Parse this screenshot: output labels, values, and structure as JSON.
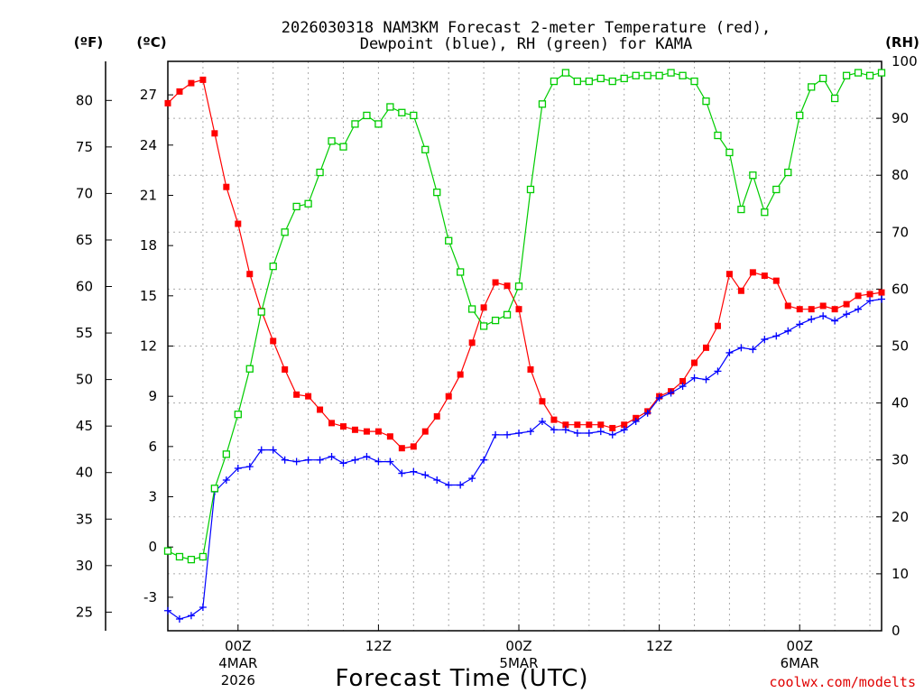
{
  "chart_data": {
    "type": "line",
    "title": "2026030318 NAM3KM Forecast 2-meter Temperature (red),",
    "subtitle": "Dewpoint (blue), RH (green) for KAMA",
    "xlabel": "Forecast Time (UTC)",
    "y_left_unit_f": "(ºF)",
    "y_left_unit_c": "(ºC)",
    "y_right_unit": "(RH)",
    "credit": "coolwx.com/modelts",
    "x_range_hours": [
      0,
      61
    ],
    "y_c_range": [
      -5,
      29
    ],
    "y_rh_range": [
      0,
      100
    ],
    "y_f_ticks": [
      "25",
      "30",
      "35",
      "40",
      "45",
      "50",
      "55",
      "60",
      "65",
      "70",
      "75",
      "80"
    ],
    "y_c_ticks": [
      "-3",
      "0",
      "3",
      "6",
      "9",
      "12",
      "15",
      "18",
      "21",
      "24",
      "27"
    ],
    "y_rh_ticks": [
      "0",
      "10",
      "20",
      "30",
      "40",
      "50",
      "60",
      "70",
      "80",
      "90",
      "100"
    ],
    "x_ticks": [
      {
        "hour": 6,
        "label": "00Z",
        "sub1": "4MAR",
        "sub2": "2026"
      },
      {
        "hour": 18,
        "label": "12Z",
        "sub1": "",
        "sub2": ""
      },
      {
        "hour": 30,
        "label": "00Z",
        "sub1": "5MAR",
        "sub2": ""
      },
      {
        "hour": 42,
        "label": "12Z",
        "sub1": "",
        "sub2": ""
      },
      {
        "hour": 54,
        "label": "00Z",
        "sub1": "6MAR",
        "sub2": ""
      }
    ],
    "grid": true,
    "series": [
      {
        "name": "Temperature",
        "color": "#ff0000",
        "marker": "filled-square",
        "axis": "celsius",
        "hours": [
          0,
          1,
          2,
          3,
          4,
          5,
          6,
          7,
          8,
          9,
          10,
          11,
          12,
          13,
          14,
          15,
          16,
          17,
          18,
          19,
          20,
          21,
          22,
          23,
          24,
          25,
          26,
          27,
          28,
          29,
          30,
          31,
          32,
          33,
          34,
          35,
          36,
          37,
          38,
          39,
          40,
          41,
          42,
          43,
          44,
          45,
          46,
          47,
          48,
          49,
          50,
          51,
          52,
          53,
          54,
          55,
          56,
          57,
          58,
          59,
          60,
          61
        ],
        "values": [
          26.5,
          27.2,
          27.7,
          27.9,
          24.7,
          21.5,
          19.3,
          16.3,
          14.1,
          12.3,
          10.6,
          9.1,
          9.0,
          8.2,
          7.4,
          7.2,
          7.0,
          6.9,
          6.9,
          6.6,
          5.9,
          6.0,
          6.9,
          7.8,
          9.0,
          10.3,
          12.2,
          14.3,
          15.8,
          15.6,
          14.2,
          10.6,
          8.7,
          7.6,
          7.3,
          7.3,
          7.3,
          7.3,
          7.1,
          7.3,
          7.7,
          8.1,
          9.0,
          9.3,
          9.9,
          11.0,
          11.9,
          13.2,
          16.3,
          15.3,
          16.4,
          16.2,
          15.9,
          14.4,
          14.2,
          14.2,
          14.4,
          14.2,
          14.5,
          15.0,
          15.1,
          15.2
        ]
      },
      {
        "name": "Dewpoint",
        "color": "#0000ff",
        "marker": "plus",
        "axis": "celsius",
        "hours": [
          0,
          1,
          2,
          3,
          4,
          5,
          6,
          7,
          8,
          9,
          10,
          11,
          12,
          13,
          14,
          15,
          16,
          17,
          18,
          19,
          20,
          21,
          22,
          23,
          24,
          25,
          26,
          27,
          28,
          29,
          30,
          31,
          32,
          33,
          34,
          35,
          36,
          37,
          38,
          39,
          40,
          41,
          42,
          43,
          44,
          45,
          46,
          47,
          48,
          49,
          50,
          51,
          52,
          53,
          54,
          55,
          56,
          57,
          58,
          59,
          60,
          61
        ],
        "values": [
          -3.8,
          -4.3,
          -4.1,
          -3.6,
          3.3,
          4.0,
          4.7,
          4.8,
          5.8,
          5.8,
          5.2,
          5.1,
          5.2,
          5.2,
          5.4,
          5.0,
          5.2,
          5.4,
          5.1,
          5.1,
          4.4,
          4.5,
          4.3,
          4.0,
          3.7,
          3.7,
          4.1,
          5.2,
          6.7,
          6.7,
          6.8,
          6.9,
          7.5,
          7.0,
          7.0,
          6.8,
          6.8,
          6.9,
          6.7,
          7.0,
          7.5,
          8.0,
          8.9,
          9.2,
          9.6,
          10.1,
          10.0,
          10.5,
          11.6,
          11.9,
          11.8,
          12.4,
          12.6,
          12.9,
          13.3,
          13.6,
          13.8,
          13.5,
          13.9,
          14.2,
          14.7,
          14.8
        ]
      },
      {
        "name": "RH",
        "color": "#00cc00",
        "marker": "open-square",
        "axis": "rh",
        "hours": [
          0,
          1,
          2,
          3,
          4,
          5,
          6,
          7,
          8,
          9,
          10,
          11,
          12,
          13,
          14,
          15,
          16,
          17,
          18,
          19,
          20,
          21,
          22,
          23,
          24,
          25,
          26,
          27,
          28,
          29,
          30,
          31,
          32,
          33,
          34,
          35,
          36,
          37,
          38,
          39,
          40,
          41,
          42,
          43,
          44,
          45,
          46,
          47,
          48,
          49,
          50,
          51,
          52,
          53,
          54,
          55,
          56,
          57,
          58,
          59,
          60,
          61
        ],
        "values": [
          14,
          13,
          12.5,
          13,
          25,
          31,
          38,
          46,
          56,
          64,
          70,
          74.5,
          75,
          80.5,
          86,
          85,
          89,
          90.5,
          89,
          92,
          91,
          90.5,
          84.5,
          77,
          68.5,
          63,
          56.5,
          53.5,
          54.5,
          55.5,
          60.5,
          77.5,
          92.5,
          96.5,
          98,
          96.5,
          96.5,
          97,
          96.5,
          97,
          97.5,
          97.5,
          97.5,
          98,
          97.5,
          96.5,
          93,
          87,
          84,
          74,
          80,
          73.5,
          77.5,
          80.5,
          90.5,
          95.5,
          97,
          93.5,
          97.5,
          98,
          97.5,
          98
        ]
      }
    ]
  }
}
